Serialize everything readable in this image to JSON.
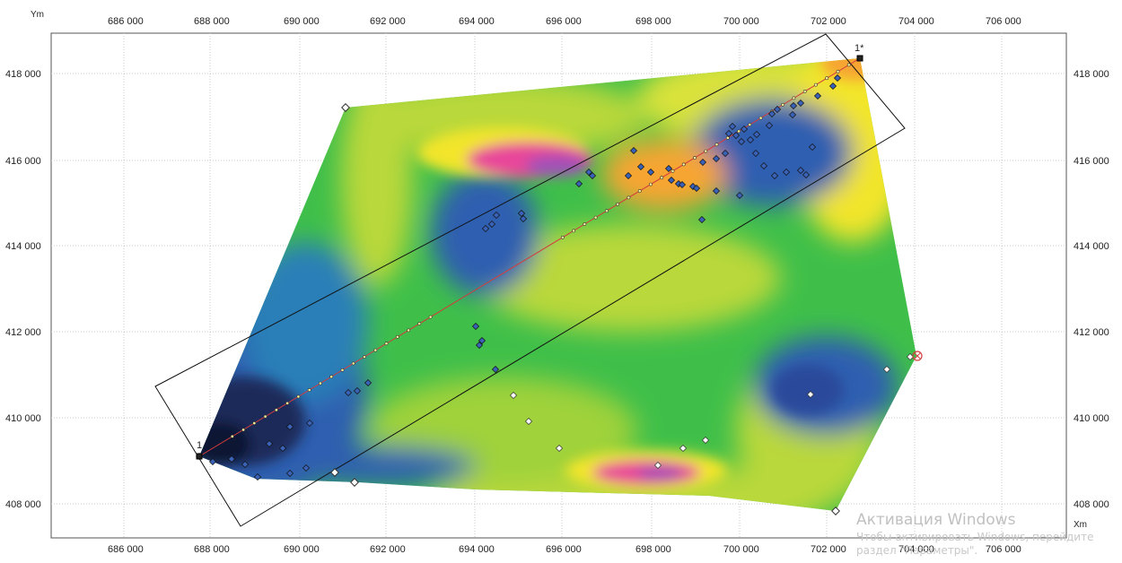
{
  "axes": {
    "x_title": "Xm",
    "y_title": "Ym",
    "x_ticks": [
      "686 000",
      "688 000",
      "690 000",
      "692 000",
      "694 000",
      "696 000",
      "698 000",
      "700 000",
      "702 000",
      "704 000",
      "706 000"
    ],
    "y_ticks": [
      "408 000",
      "410 000",
      "412 000",
      "414 000",
      "416 000",
      "418 000"
    ]
  },
  "profile": {
    "start_label": "1",
    "end_label": "1*",
    "line_color": "#d23c3c"
  },
  "palette": {
    "low": "#1a2a5a",
    "blue": "#2f5fb0",
    "green": "#3fbf4a",
    "yellow_green": "#b9d83a",
    "yellow": "#f2e52a",
    "orange": "#f7a531",
    "magenta": "#e8479a",
    "purple": "#a051b8"
  },
  "watermark": {
    "title": "Активация Windows",
    "subtitle": "Чтобы активировать Windows, перейдите раздел \"Параметры\"."
  }
}
